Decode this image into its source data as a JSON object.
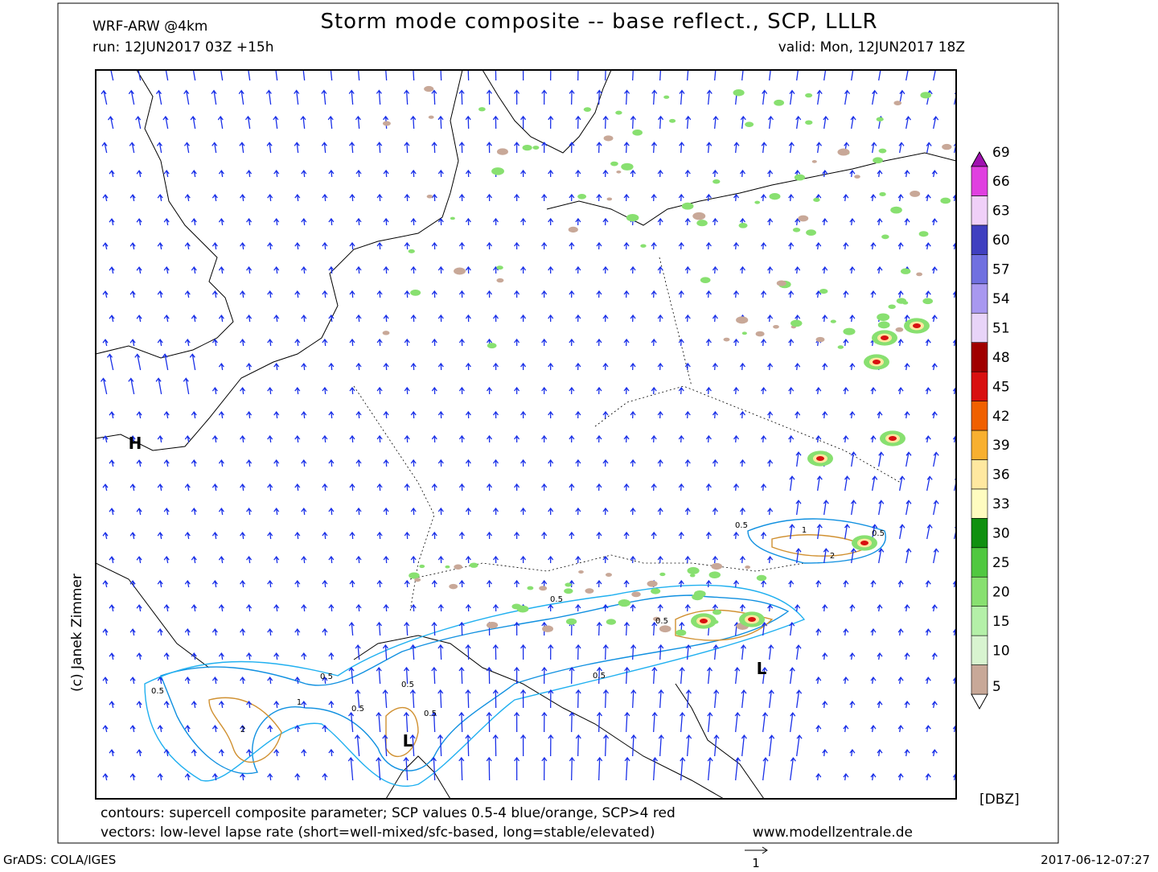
{
  "header": {
    "model": "WRF-ARW @4km",
    "title": "Storm mode composite -- base reflect., SCP, LLLR",
    "run": "run: 12JUN2017 03Z +15h",
    "valid": "valid: Mon, 12JUN2017 18Z"
  },
  "map": {
    "labels": [
      {
        "text": "H"
      },
      {
        "text": "L"
      },
      {
        "text": "L"
      }
    ],
    "contour_labels": [
      "0.5",
      "0.5",
      "0.5",
      "0.5",
      "0.5",
      "0.5",
      "0.5",
      "0.5",
      "0.5",
      "1",
      "2",
      "1",
      "2",
      "0.5"
    ]
  },
  "legend": {
    "unit": "[DBZ]",
    "levels": [
      5,
      10,
      15,
      20,
      25,
      30,
      33,
      36,
      39,
      42,
      45,
      48,
      51,
      54,
      57,
      60,
      63,
      66,
      69
    ],
    "colors": [
      "#f4e0d8",
      "#c8a898",
      "#d8f4d0",
      "#b4f0a8",
      "#88e070",
      "#50c840",
      "#109010",
      "#fffcc0",
      "#ffe8a0",
      "#f8b030",
      "#f06000",
      "#d81010",
      "#a00000",
      "#e8d4f8",
      "#a898f0",
      "#7070e0",
      "#4040c0",
      "#f0d0f8",
      "#e040e0",
      "#a010b0"
    ]
  },
  "footer": {
    "contours": "contours: supercell composite parameter; SCP values 0.5-4 blue/orange, SCP>4 red",
    "vectors": "vectors: low-level lapse rate (short=well-mixed/sfc-based, long=stable/elevated)",
    "site": "www.modellzentrale.de",
    "credit": "(c) Janek Zimmer",
    "software": "GrADS: COLA/IGES",
    "scale": "1",
    "timestamp": "2017-06-12-07:27"
  }
}
